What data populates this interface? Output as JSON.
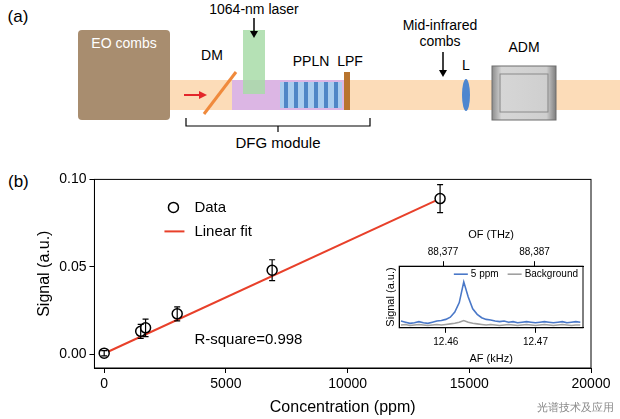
{
  "diagram": {
    "title": "(a)",
    "labels": {
      "source": "EO combs",
      "pump": "1064-nm laser",
      "mirror": "DM",
      "crystal": "PPLN",
      "filter": "LPF",
      "output": "Mid-infrared combs",
      "lens": "L",
      "detector": "ADM",
      "module": "DFG module"
    }
  },
  "watermark": "光谱技术及应用",
  "chart_data": [
    {
      "type": "scatter",
      "title": "(b)",
      "x_label": "Concentration (ppm)",
      "y_label": "Signal (a.u.)",
      "series": [
        {
          "name": "Data",
          "type": "scatter",
          "marker": "open_circle",
          "color": "#000000",
          "x": [
            0,
            1500,
            1700,
            3000,
            6900,
            13800
          ],
          "values": [
            0.0005,
            0.013,
            0.015,
            0.023,
            0.048,
            0.089
          ],
          "error": [
            0.0015,
            0.004,
            0.005,
            0.004,
            0.006,
            0.008
          ]
        },
        {
          "name": "Linear fit",
          "type": "line",
          "color": "#e8402a",
          "x": [
            0,
            13800
          ],
          "values": [
            0.0003,
            0.089
          ]
        }
      ],
      "xlim": [
        -400,
        20000
      ],
      "xticks": [
        0,
        5000,
        10000,
        15000,
        20000
      ],
      "ylim": [
        -0.008,
        0.1
      ],
      "yticks": [
        {
          "value": 0,
          "label": "0.00"
        },
        {
          "value": 0.05,
          "label": "0.05"
        },
        {
          "value": 0.1,
          "label": "0.10"
        }
      ],
      "annotations": [
        "R-square=0.998"
      ],
      "legend": "upper left",
      "grid": false
    },
    {
      "type": "line",
      "x_label": "AF (kHz)",
      "x2_label": "OF (THz)",
      "y_label": "Signal (a.u.)",
      "x": [
        12.455,
        12.4555,
        12.456,
        12.4565,
        12.457,
        12.4575,
        12.458,
        12.4585,
        12.459,
        12.4595,
        12.46,
        12.4605,
        12.461,
        12.4615,
        12.462,
        12.4625,
        12.463,
        12.4635,
        12.464,
        12.4645,
        12.465,
        12.4655,
        12.466,
        12.4665,
        12.467,
        12.4675,
        12.468,
        12.4685,
        12.469,
        12.4695,
        12.47,
        12.4705,
        12.471,
        12.4715,
        12.472,
        12.4725,
        12.473,
        12.4735,
        12.474,
        12.4745,
        12.475
      ],
      "series": [
        {
          "name": "5 ppm",
          "color": "#4a78c8",
          "values": [
            0.12,
            0.1,
            0.08,
            0.09,
            0.11,
            0.09,
            0.08,
            0.1,
            0.12,
            0.13,
            0.15,
            0.19,
            0.28,
            0.45,
            0.82,
            0.55,
            0.34,
            0.24,
            0.18,
            0.15,
            0.14,
            0.12,
            0.11,
            0.12,
            0.1,
            0.11,
            0.09,
            0.1,
            0.11,
            0.1,
            0.09,
            0.1,
            0.11,
            0.1,
            0.09,
            0.1,
            0.11,
            0.09,
            0.1,
            0.11,
            0.1
          ]
        },
        {
          "name": "Background",
          "color": "#a0a0a0",
          "values": [
            0.05,
            0.06,
            0.04,
            0.05,
            0.06,
            0.05,
            0.04,
            0.05,
            0.06,
            0.05,
            0.06,
            0.07,
            0.08,
            0.1,
            0.13,
            0.1,
            0.08,
            0.07,
            0.06,
            0.05,
            0.06,
            0.05,
            0.04,
            0.05,
            0.06,
            0.05,
            0.04,
            0.05,
            0.06,
            0.05,
            0.04,
            0.05,
            0.06,
            0.05,
            0.04,
            0.05,
            0.06,
            0.05,
            0.04,
            0.05,
            0.05
          ]
        }
      ],
      "xlim": [
        12.4548,
        12.4753
      ],
      "xticks": [
        12.46,
        12.47
      ],
      "x2lim": [
        88.3722,
        88.3923
      ],
      "x2ticks": [
        {
          "value": 88.377,
          "label": "88,377"
        },
        {
          "value": 88.387,
          "label": "88,387"
        }
      ],
      "ylim": [
        0,
        1.1
      ],
      "tick_labels": "x",
      "legend": "upper right",
      "grid": false
    }
  ]
}
